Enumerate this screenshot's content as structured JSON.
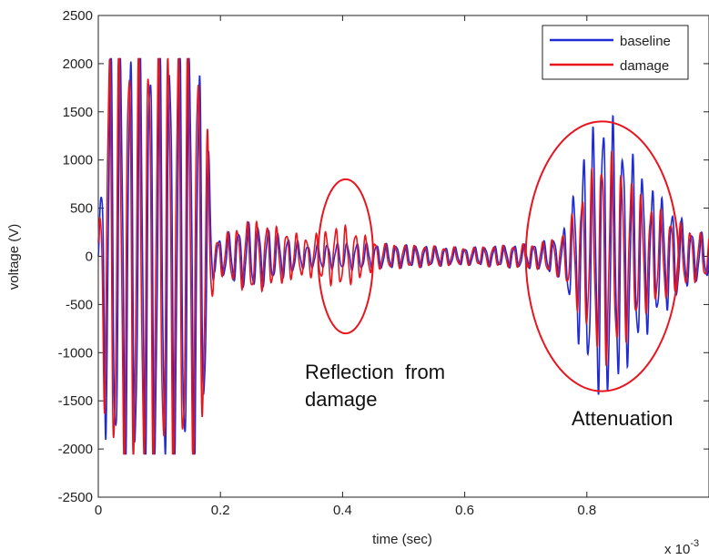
{
  "chart_data": {
    "type": "line",
    "xlabel": "time (sec)",
    "ylabel": "voltage (V)",
    "x_scale_note": "x 10",
    "x_scale_exponent": "-3",
    "xlim": [
      0,
      1.0
    ],
    "ylim": [
      -2500,
      2500
    ],
    "xticks": [
      0,
      0.2,
      0.4,
      0.6,
      0.8
    ],
    "xtick_labels": [
      "0",
      "0.2",
      "0.4",
      "0.6",
      "0.8"
    ],
    "yticks": [
      -2500,
      -2000,
      -1500,
      -1000,
      -500,
      0,
      500,
      1000,
      1500,
      2000,
      2500
    ],
    "ytick_labels": [
      "-2500",
      "-2000",
      "-1500",
      "-1000",
      "-500",
      "0",
      "500",
      "1000",
      "1500",
      "2000",
      "2500"
    ],
    "grid": false,
    "legend": {
      "position": "top-right",
      "entries": [
        "baseline",
        "damage"
      ]
    },
    "series": [
      {
        "name": "baseline",
        "color": "#1f2bd6",
        "envelope": [
          [
            0.0,
            150
          ],
          [
            0.015,
            2050
          ],
          [
            0.16,
            2050
          ],
          [
            0.175,
            1500
          ],
          [
            0.19,
            150
          ],
          [
            0.25,
            320
          ],
          [
            0.34,
            110
          ],
          [
            0.42,
            130
          ],
          [
            0.6,
            80
          ],
          [
            0.72,
            120
          ],
          [
            0.76,
            200
          ],
          [
            0.8,
            1100
          ],
          [
            0.83,
            1400
          ],
          [
            0.9,
            700
          ],
          [
            0.97,
            250
          ],
          [
            1.0,
            200
          ]
        ]
      },
      {
        "name": "damage",
        "color": "#e8141e",
        "envelope": [
          [
            0.0,
            150
          ],
          [
            0.015,
            2050
          ],
          [
            0.16,
            2050
          ],
          [
            0.175,
            1500
          ],
          [
            0.19,
            150
          ],
          [
            0.25,
            350
          ],
          [
            0.34,
            180
          ],
          [
            0.4,
            300
          ],
          [
            0.46,
            120
          ],
          [
            0.6,
            80
          ],
          [
            0.72,
            120
          ],
          [
            0.76,
            200
          ],
          [
            0.8,
            700
          ],
          [
            0.83,
            1050
          ],
          [
            0.9,
            500
          ],
          [
            0.97,
            250
          ],
          [
            1.0,
            200
          ]
        ]
      }
    ],
    "annotations": [
      {
        "text_lines": [
          "Reflection  from",
          "damage"
        ]
      },
      {
        "text_lines": [
          "Attenuation"
        ]
      }
    ],
    "highlight_ellipses": [
      {
        "cx": 0.405,
        "cy": 0,
        "rx": 0.045,
        "ry": 800
      },
      {
        "cx": 0.825,
        "cy": 0,
        "rx": 0.125,
        "ry": 1400
      }
    ]
  }
}
